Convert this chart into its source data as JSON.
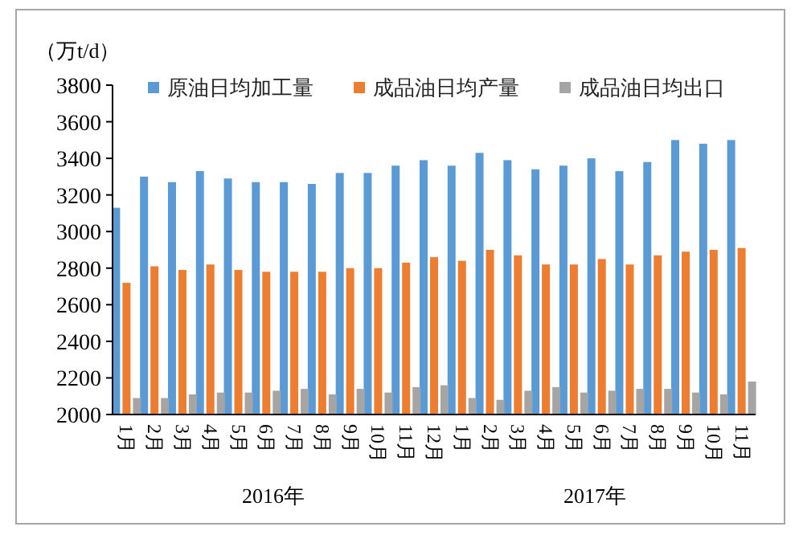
{
  "chart_data": {
    "type": "bar",
    "ylabel": "（万t/d）",
    "categories": [
      "1月",
      "2月",
      "3月",
      "4月",
      "5月",
      "6月",
      "7月",
      "8月",
      "9月",
      "10月",
      "11月",
      "12月",
      "1月",
      "2月",
      "3月",
      "4月",
      "5月",
      "6月",
      "7月",
      "8月",
      "9月",
      "10月",
      "11月"
    ],
    "series": [
      {
        "name": "原油日均加工量",
        "color": "#5b9bd5",
        "values": [
          3130,
          3300,
          3270,
          3330,
          3290,
          3270,
          3270,
          3260,
          3320,
          3320,
          3360,
          3390,
          3360,
          3430,
          3390,
          3340,
          3360,
          3400,
          3330,
          3380,
          3500,
          3480,
          3500
        ]
      },
      {
        "name": "成品油日均产量",
        "color": "#ed7d31",
        "values": [
          2720,
          2810,
          2790,
          2820,
          2790,
          2780,
          2780,
          2780,
          2800,
          2800,
          2830,
          2860,
          2840,
          2900,
          2870,
          2820,
          2820,
          2850,
          2820,
          2870,
          2890,
          2900,
          2910
        ]
      },
      {
        "name": "成品油日均出口",
        "color": "#a5a5a5",
        "values": [
          2090,
          2090,
          2110,
          2120,
          2120,
          2130,
          2140,
          2110,
          2140,
          2120,
          2150,
          2160,
          2090,
          2080,
          2130,
          2150,
          2120,
          2130,
          2140,
          2140,
          2120,
          2110,
          2180
        ]
      }
    ],
    "ylim": [
      2000,
      3800
    ],
    "yticks": [
      2000,
      2200,
      2400,
      2600,
      2800,
      3000,
      3200,
      3400,
      3600,
      3800
    ],
    "legend": "top",
    "annotations": [
      "2016年",
      "2017年"
    ]
  }
}
